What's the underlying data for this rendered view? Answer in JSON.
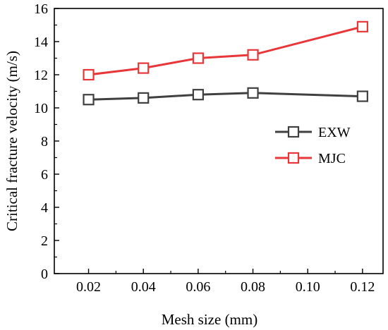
{
  "chart_data": {
    "type": "line",
    "xlabel": "Mesh size (mm)",
    "ylabel": "Critical fracture velocity (m/s)",
    "xlim": [
      0.0075,
      0.1275
    ],
    "ylim": [
      0,
      16
    ],
    "x_ticks": [
      "0.02",
      "0.04",
      "0.06",
      "0.08",
      "0.10",
      "0.12"
    ],
    "y_ticks": [
      "0",
      "2",
      "4",
      "6",
      "8",
      "10",
      "12",
      "14",
      "16"
    ],
    "grid": false,
    "legend_position": "right",
    "series": [
      {
        "name": "EXW",
        "color": "#404040",
        "marker": "open-square",
        "x": [
          0.02,
          0.04,
          0.06,
          0.08,
          0.12
        ],
        "values": [
          10.5,
          10.6,
          10.8,
          10.9,
          10.7
        ]
      },
      {
        "name": "MJC",
        "color": "#e8373a",
        "marker": "open-square",
        "x": [
          0.02,
          0.04,
          0.06,
          0.08,
          0.12
        ],
        "values": [
          12.0,
          12.4,
          13.0,
          13.2,
          14.9
        ]
      }
    ]
  }
}
